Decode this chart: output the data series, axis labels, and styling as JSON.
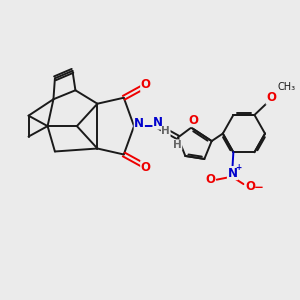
{
  "background_color": "#EBEBEB",
  "bond_color": "#1A1A1A",
  "bond_width": 1.4,
  "atom_colors": {
    "O": "#EE0000",
    "N": "#0000CC",
    "C": "#1A1A1A",
    "H": "#666666"
  },
  "font_size": 8.5,
  "xlim": [
    0,
    10
  ],
  "ylim": [
    0,
    10
  ]
}
